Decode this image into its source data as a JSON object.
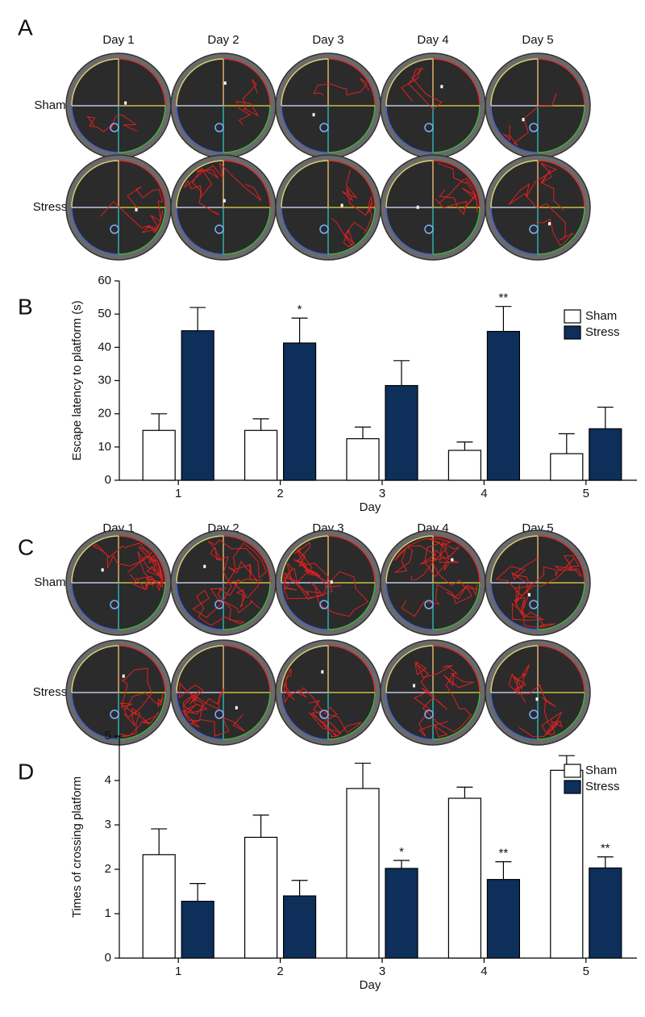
{
  "panel_a": {
    "label": "A",
    "columns": [
      "Day 1",
      "Day 2",
      "Day 3",
      "Day 4",
      "Day 5"
    ],
    "rows": [
      "Sham",
      "Stress"
    ]
  },
  "panel_c": {
    "label": "C",
    "columns": [
      "Day 1",
      "Day 2",
      "Day 3",
      "Day 4",
      "Day 5"
    ],
    "rows": [
      "Sham",
      "Stress"
    ]
  },
  "chart_data": [
    {
      "type": "bar",
      "label": "B",
      "x_label": "Day",
      "y_label": "Escape latency to platform (s)",
      "categories": [
        "1",
        "2",
        "3",
        "4",
        "5"
      ],
      "series": [
        {
          "name": "Sham",
          "color": "#ffffff",
          "values": [
            15,
            15,
            12.5,
            9,
            8
          ],
          "errors": [
            5,
            3.5,
            3.5,
            2.5,
            6
          ]
        },
        {
          "name": "Stress",
          "color": "#0d2f5a",
          "values": [
            45,
            41.3,
            28.5,
            44.8,
            15.5
          ],
          "errors": [
            7,
            7.5,
            7.5,
            7.5,
            6.5
          ]
        }
      ],
      "annotations": [
        {
          "category": "2",
          "text": "*"
        },
        {
          "category": "4",
          "text": "**"
        }
      ],
      "ylim": [
        0,
        60
      ],
      "yticks": [
        0,
        10,
        20,
        30,
        40,
        50,
        60
      ],
      "legend": "upper right"
    },
    {
      "type": "bar",
      "label": "D",
      "x_label": "Day",
      "y_label": "Times of crossing platform",
      "categories": [
        "1",
        "2",
        "3",
        "4",
        "5"
      ],
      "series": [
        {
          "name": "Sham",
          "color": "#ffffff",
          "values": [
            2.33,
            2.72,
            3.82,
            3.6,
            4.23
          ],
          "errors": [
            0.58,
            0.5,
            0.57,
            0.25,
            0.33
          ]
        },
        {
          "name": "Stress",
          "color": "#0d2f5a",
          "values": [
            1.28,
            1.4,
            2.02,
            1.77,
            2.03
          ],
          "errors": [
            0.4,
            0.35,
            0.18,
            0.4,
            0.25
          ]
        }
      ],
      "annotations": [
        {
          "category": "3",
          "text": "*"
        },
        {
          "category": "4",
          "text": "**"
        },
        {
          "category": "5",
          "text": "**"
        }
      ],
      "ylim": [
        0,
        5
      ],
      "yticks": [
        0,
        1,
        2,
        3,
        4,
        5
      ],
      "legend": "upper right"
    }
  ]
}
